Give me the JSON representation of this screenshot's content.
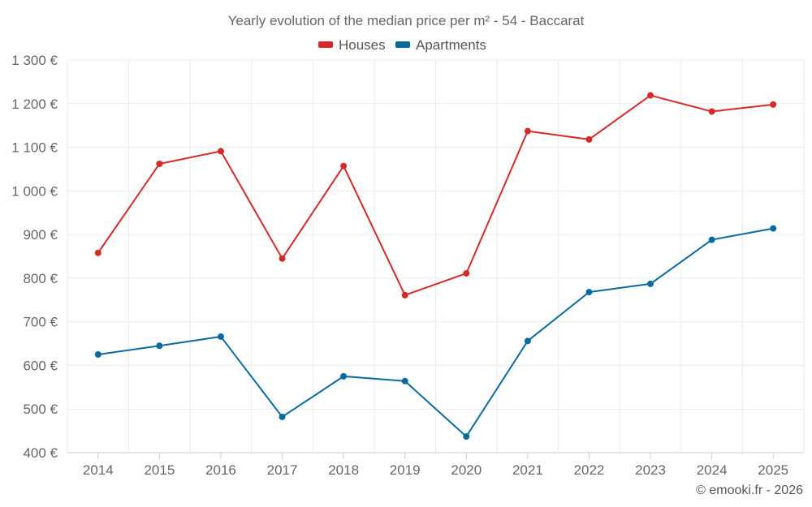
{
  "chart_data": {
    "type": "line",
    "title": "Yearly evolution of the median price per m² - 54 - Baccarat",
    "categories": [
      "2014",
      "2015",
      "2016",
      "2017",
      "2018",
      "2019",
      "2020",
      "2021",
      "2022",
      "2023",
      "2024",
      "2025"
    ],
    "series": [
      {
        "name": "Houses",
        "color": "#d42a2a",
        "values": [
          858,
          1062,
          1091,
          845,
          1057,
          761,
          811,
          1137,
          1118,
          1219,
          1182,
          1198
        ]
      },
      {
        "name": "Apartments",
        "color": "#0a6aa0",
        "values": [
          625,
          645,
          666,
          482,
          575,
          564,
          437,
          656,
          768,
          787,
          888,
          914
        ]
      }
    ],
    "ylim": [
      400,
      1300
    ],
    "yticks": [
      {
        "value": 400,
        "label": "400 €"
      },
      {
        "value": 500,
        "label": "500 €"
      },
      {
        "value": 600,
        "label": "600 €"
      },
      {
        "value": 700,
        "label": "700 €"
      },
      {
        "value": 800,
        "label": "800 €"
      },
      {
        "value": 900,
        "label": "900 €"
      },
      {
        "value": 1000,
        "label": "1 000 €"
      },
      {
        "value": 1100,
        "label": "1 100 €"
      },
      {
        "value": 1200,
        "label": "1 200 €"
      },
      {
        "value": 1300,
        "label": "1 300 €"
      }
    ],
    "xlabel": "",
    "ylabel": "",
    "grid": true,
    "legend_position": "top-center"
  },
  "credit": "© emooki.fr - 2026"
}
